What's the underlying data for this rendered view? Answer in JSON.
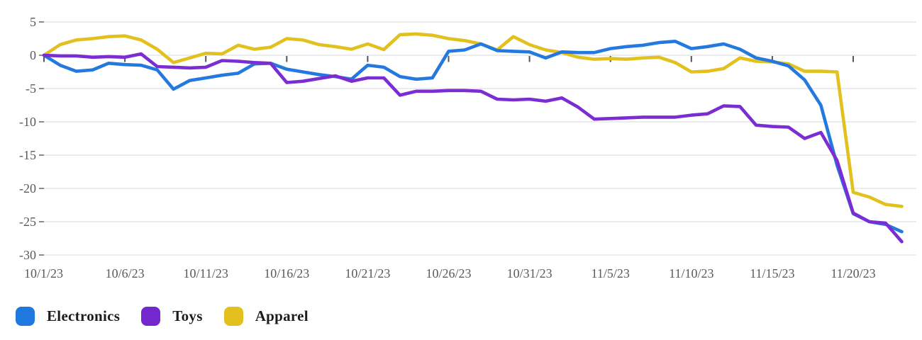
{
  "chart_data": {
    "type": "line",
    "title": "",
    "xlabel": "",
    "ylabel": "",
    "ylim": [
      -30,
      5
    ],
    "y_ticks": [
      5,
      0,
      -5,
      -10,
      -15,
      -20,
      -25,
      -30
    ],
    "grid": true,
    "legend_position": "bottom-left",
    "x_tick_step": 5,
    "x": [
      "10/1/23",
      "10/2/23",
      "10/3/23",
      "10/4/23",
      "10/5/23",
      "10/6/23",
      "10/7/23",
      "10/8/23",
      "10/9/23",
      "10/10/23",
      "10/11/23",
      "10/12/23",
      "10/13/23",
      "10/14/23",
      "10/15/23",
      "10/16/23",
      "10/17/23",
      "10/18/23",
      "10/19/23",
      "10/20/23",
      "10/21/23",
      "10/22/23",
      "10/23/23",
      "10/24/23",
      "10/25/23",
      "10/26/23",
      "10/27/23",
      "10/28/23",
      "10/29/23",
      "10/30/23",
      "10/31/23",
      "11/1/23",
      "11/2/23",
      "11/3/23",
      "11/4/23",
      "11/5/23",
      "11/6/23",
      "11/7/23",
      "11/8/23",
      "11/9/23",
      "11/10/23",
      "11/11/23",
      "11/12/23",
      "11/13/23",
      "11/14/23",
      "11/15/23",
      "11/16/23",
      "11/17/23",
      "11/18/23",
      "11/19/23",
      "11/20/23",
      "11/21/23",
      "11/22/23",
      "11/23/23"
    ],
    "x_tick_labels": [
      "10/1/23",
      "10/6/23",
      "10/11/23",
      "10/16/23",
      "10/21/23",
      "10/26/23",
      "10/31/23",
      "11/5/23",
      "11/10/23",
      "11/15/23",
      "11/20/23"
    ],
    "series": [
      {
        "name": "Electronics",
        "color": "#2479df",
        "values": [
          0,
          -1.5,
          -2.4,
          -2.2,
          -1.2,
          -1.4,
          -1.5,
          -2.2,
          -5.1,
          -3.8,
          -3.4,
          -3.0,
          -2.7,
          -1.3,
          -1.2,
          -2.1,
          -2.5,
          -2.9,
          -3.2,
          -3.6,
          -1.5,
          -1.8,
          -3.2,
          -3.6,
          -3.4,
          0.6,
          0.8,
          1.7,
          0.7,
          0.6,
          0.5,
          -0.4,
          0.5,
          0.4,
          0.4,
          1.0,
          1.3,
          1.5,
          1.9,
          2.1,
          1.0,
          1.3,
          1.7,
          0.9,
          -0.4,
          -0.9,
          -1.6,
          -3.7,
          -7.5,
          -16.5,
          -23.8,
          -25.0,
          -25.4,
          -26.5
        ]
      },
      {
        "name": "Toys",
        "color": "#7a2dd2",
        "values": [
          0,
          -0.1,
          -0.1,
          -0.3,
          -0.2,
          -0.3,
          0.2,
          -1.7,
          -1.8,
          -1.9,
          -1.8,
          -0.8,
          -0.9,
          -1.1,
          -1.2,
          -4.1,
          -3.9,
          -3.5,
          -3.1,
          -3.9,
          -3.4,
          -3.4,
          -6.0,
          -5.4,
          -5.4,
          -5.3,
          -5.3,
          -5.4,
          -6.6,
          -6.7,
          -6.6,
          -6.9,
          -6.4,
          -7.8,
          -9.6,
          -9.5,
          -9.4,
          -9.3,
          -9.3,
          -9.3,
          -9.0,
          -8.8,
          -7.6,
          -7.7,
          -10.5,
          -10.7,
          -10.8,
          -12.5,
          -11.6,
          -15.8,
          -23.7,
          -25.0,
          -25.2,
          -28.0
        ]
      },
      {
        "name": "Apparel",
        "color": "#e2c01e",
        "values": [
          0,
          1.6,
          2.3,
          2.5,
          2.8,
          2.9,
          2.3,
          0.9,
          -1.1,
          -0.4,
          0.3,
          0.2,
          1.5,
          0.9,
          1.2,
          2.5,
          2.3,
          1.6,
          1.3,
          0.9,
          1.7,
          0.85,
          3.1,
          3.2,
          3.0,
          2.5,
          2.2,
          1.7,
          0.8,
          2.8,
          1.6,
          0.8,
          0.4,
          -0.3,
          -0.6,
          -0.5,
          -0.6,
          -0.4,
          -0.3,
          -1.1,
          -2.5,
          -2.4,
          -2.0,
          -0.4,
          -0.9,
          -1.0,
          -1.3,
          -2.4,
          -2.4,
          -2.5,
          -20.6,
          -21.3,
          -22.4,
          -22.7
        ]
      }
    ]
  },
  "legend": {
    "items": [
      {
        "label": "Electronics",
        "color": "#1f78e0"
      },
      {
        "label": "Toys",
        "color": "#7426cf"
      },
      {
        "label": "Apparel",
        "color": "#e3c01d"
      }
    ]
  }
}
